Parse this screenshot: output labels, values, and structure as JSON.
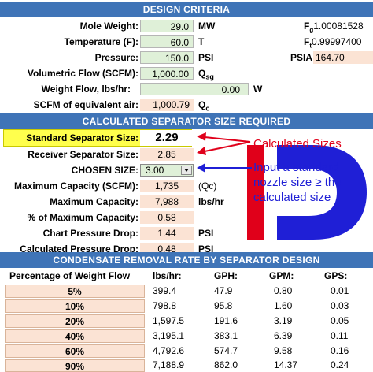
{
  "design": {
    "title": "DESIGN CRITERIA",
    "mole_weight": {
      "label": "Mole Weight:",
      "value": "29.0",
      "unit": "MW"
    },
    "temperature": {
      "label": "Temperature (F):",
      "value": "60.0",
      "unit": "T"
    },
    "pressure": {
      "label": "Pressure:",
      "value": "150.0",
      "unit": "PSI"
    },
    "flow": {
      "label": "Volumetric Flow (SCFM):",
      "value": "1,000.00",
      "unit_main": "Q",
      "unit_sub": "sg"
    },
    "weight_flow": {
      "label": "Weight Flow, lbs/hr:",
      "value": "0.00",
      "unit": "W"
    },
    "scfm_air": {
      "label": "SCFM of equivalent air:",
      "value": "1,000.79",
      "unit_main": "Q",
      "unit_sub": "c"
    },
    "fg": {
      "main": "F",
      "sub": "g",
      "value": "1.00081528"
    },
    "ft": {
      "main": "F",
      "sub": "t",
      "value": "0.99997400"
    },
    "psia": {
      "label": "PSIA",
      "value": "164.70"
    }
  },
  "calc": {
    "title": "CALCULATED SEPARATOR SIZE REQUIRED",
    "standard": {
      "label": "Standard Separator Size:",
      "value": "2.29"
    },
    "receiver": {
      "label": "Receiver Separator Size:",
      "value": "2.85"
    },
    "chosen": {
      "label": "CHOSEN SIZE:",
      "value": "3.00"
    },
    "max_cap_scfm": {
      "label": "Maximum Capacity (SCFM):",
      "value": "1,735",
      "unit": "(Qc)"
    },
    "max_cap": {
      "label": "Maximum Capacity:",
      "value": "7,988",
      "unit": "lbs/hr"
    },
    "pct_max": {
      "label": "% of Maximum Capacity:",
      "value": "0.58"
    },
    "chart_drop": {
      "label": "Chart Pressure Drop:",
      "value": "1.44",
      "unit": "PSI"
    },
    "calc_drop": {
      "label": "Calculated Pressure Drop:",
      "value": "0.48",
      "unit": "PSI"
    }
  },
  "annotations": {
    "calculated": "Calculated  Sizes",
    "input_line1": "Input a standard",
    "input_line2": "nozzle size ≥ the",
    "input_line3": "calculated size"
  },
  "condensate": {
    "title": "CONDENSATE REMOVAL RATE BY SEPARATOR DESIGN",
    "headers": [
      "Percentage of Weight Flow",
      "lbs/hr:",
      "GPH:",
      "GPM:",
      "GPS:"
    ],
    "rows": [
      [
        "5%",
        "399.4",
        "47.9",
        "0.80",
        "0.01"
      ],
      [
        "10%",
        "798.8",
        "95.8",
        "1.60",
        "0.03"
      ],
      [
        "20%",
        "1,597.5",
        "191.6",
        "3.19",
        "0.05"
      ],
      [
        "40%",
        "3,195.1",
        "383.1",
        "6.39",
        "0.11"
      ],
      [
        "60%",
        "4,792.6",
        "574.7",
        "9.58",
        "0.16"
      ],
      [
        "90%",
        "7,188.9",
        "862.0",
        "14.37",
        "0.24"
      ]
    ]
  },
  "colors": {
    "header_blue": "#3f74b7",
    "input_green": "#dff0d8",
    "peach": "#fbe3d4",
    "highlight_yellow": "#ffff4d",
    "arrow_red": "#e0001a",
    "arrow_blue": "#1f1fd6"
  },
  "icons": {
    "dropdown": "chevron-down-icon",
    "logo": "d-logo"
  }
}
